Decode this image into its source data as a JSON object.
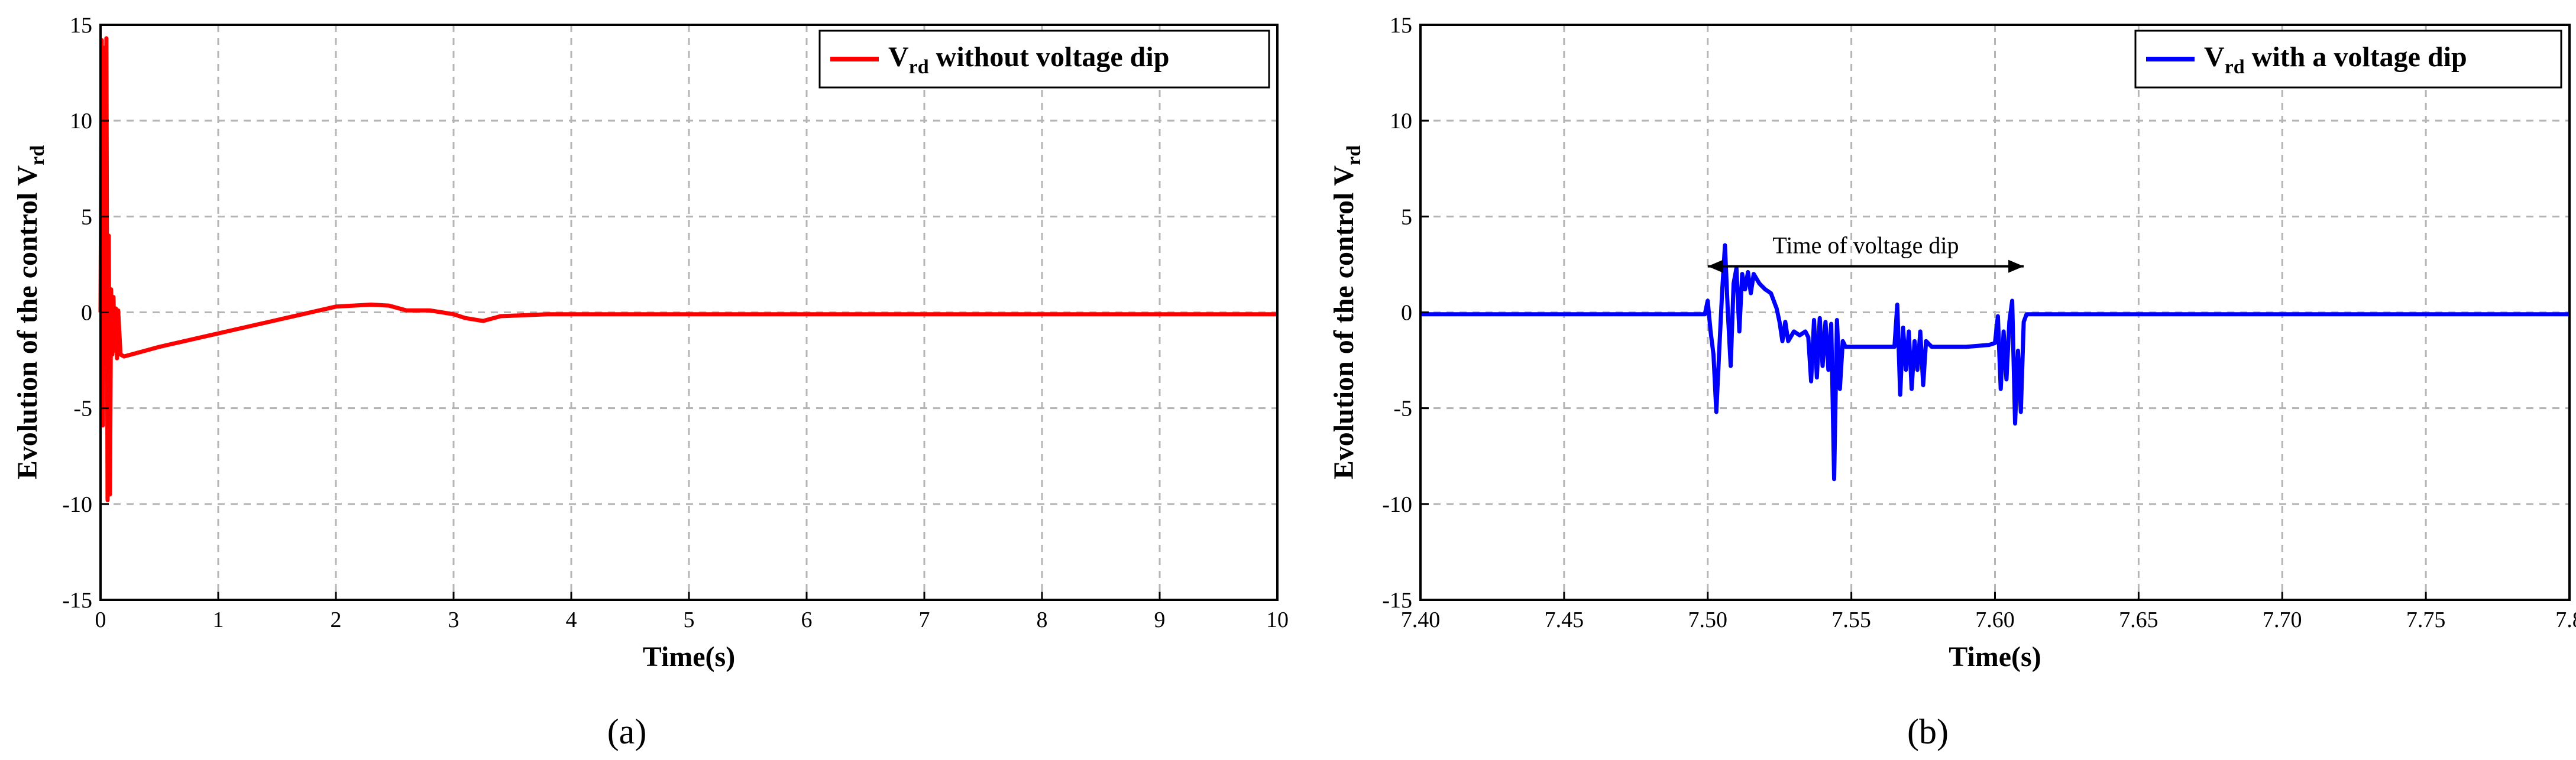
{
  "chart_data": [
    {
      "type": "line",
      "panel_label": "(a)",
      "xlabel": "Time(s)",
      "ylabel": "Evolution of the control V",
      "ylabel_sub": "rd",
      "xlim": [
        0,
        10
      ],
      "ylim": [
        -15,
        15
      ],
      "xticks": [
        "0",
        "1",
        "2",
        "3",
        "4",
        "5",
        "6",
        "7",
        "8",
        "9",
        "10"
      ],
      "yticks": [
        "15",
        "10",
        "5",
        "0",
        "-5",
        "-10",
        "-15"
      ],
      "grid": true,
      "legend_position": "top-right",
      "series": [
        {
          "name": "V",
          "name_sub": "rd",
          "name_rest": " without voltage dip",
          "color": "#ff0000",
          "x": [
            0,
            0.01,
            0.02,
            0.03,
            0.04,
            0.05,
            0.06,
            0.07,
            0.08,
            0.09,
            0.1,
            0.11,
            0.12,
            0.13,
            0.14,
            0.15,
            0.17,
            0.2,
            0.5,
            1.0,
            1.5,
            2.0,
            2.3,
            2.45,
            2.6,
            2.8,
            3.0,
            3.1,
            3.25,
            3.4,
            3.8,
            4.5,
            10
          ],
          "y": [
            0,
            14.2,
            -5.9,
            13.8,
            -2.5,
            14.3,
            -9.8,
            4.0,
            -9.5,
            1.2,
            -2.2,
            0.8,
            -2.0,
            0.2,
            -2.4,
            0.1,
            -2.2,
            -2.3,
            -1.8,
            -1.1,
            -0.4,
            0.3,
            0.4,
            0.35,
            0.1,
            0.1,
            -0.1,
            -0.3,
            -0.45,
            -0.2,
            -0.1,
            -0.1,
            -0.1
          ]
        }
      ]
    },
    {
      "type": "line",
      "panel_label": "(b)",
      "xlabel": "Time(s)",
      "ylabel": "Evolution of the control V",
      "ylabel_sub": "rd",
      "xlim": [
        7.4,
        7.8
      ],
      "ylim": [
        -15,
        15
      ],
      "xticks": [
        "7.40",
        "7.45",
        "7.50",
        "7.55",
        "7.60",
        "7.65",
        "7.70",
        "7.75",
        "7.8"
      ],
      "yticks": [
        "15",
        "10",
        "5",
        "0",
        "-5",
        "-10",
        "-15"
      ],
      "grid": true,
      "legend_position": "top-right",
      "annotation": {
        "text": "Time of voltage dip",
        "x_start": 7.5,
        "x_end": 7.61,
        "y": 2.4
      },
      "series": [
        {
          "name": "V",
          "name_sub": "rd",
          "name_rest": " with a voltage dip",
          "color": "#0000ff",
          "x": [
            7.4,
            7.499,
            7.5,
            7.501,
            7.502,
            7.503,
            7.504,
            7.505,
            7.506,
            7.507,
            7.508,
            7.509,
            7.51,
            7.511,
            7.512,
            7.513,
            7.514,
            7.515,
            7.516,
            7.518,
            7.52,
            7.522,
            7.524,
            7.525,
            7.526,
            7.527,
            7.528,
            7.53,
            7.532,
            7.534,
            7.535,
            7.536,
            7.537,
            7.538,
            7.539,
            7.54,
            7.541,
            7.542,
            7.543,
            7.544,
            7.545,
            7.546,
            7.547,
            7.548,
            7.55,
            7.555,
            7.56,
            7.565,
            7.566,
            7.567,
            7.568,
            7.569,
            7.57,
            7.571,
            7.572,
            7.573,
            7.574,
            7.575,
            7.576,
            7.578,
            7.58,
            7.59,
            7.598,
            7.6,
            7.601,
            7.602,
            7.603,
            7.604,
            7.605,
            7.606,
            7.607,
            7.608,
            7.609,
            7.61,
            7.611,
            7.612,
            7.62,
            7.7,
            7.8
          ],
          "y": [
            -0.1,
            -0.1,
            0.6,
            -1.0,
            -2.2,
            -5.2,
            -2.0,
            1.0,
            3.5,
            0.0,
            -2.8,
            1.5,
            2.3,
            -1.0,
            2.0,
            1.2,
            2.1,
            1.0,
            2.0,
            1.5,
            1.2,
            1.0,
            0.2,
            -0.5,
            -1.5,
            -0.5,
            -1.5,
            -1.0,
            -1.2,
            -1.0,
            -1.3,
            -3.6,
            -0.4,
            -3.4,
            -0.3,
            -2.8,
            -0.5,
            -3.0,
            -0.6,
            -8.7,
            -0.4,
            -4.0,
            -1.5,
            -1.8,
            -1.8,
            -1.8,
            -1.8,
            -1.8,
            0.4,
            -4.3,
            -0.8,
            -3.0,
            -1.0,
            -4.0,
            -1.5,
            -3.0,
            -1.0,
            -3.8,
            -1.5,
            -1.8,
            -1.8,
            -1.8,
            -1.7,
            -1.6,
            -0.2,
            -4.0,
            -1.0,
            -3.5,
            -0.5,
            0.6,
            -5.8,
            -2.0,
            -5.2,
            -0.5,
            -0.1,
            -0.1,
            -0.1,
            -0.1,
            -0.1
          ]
        }
      ]
    }
  ]
}
